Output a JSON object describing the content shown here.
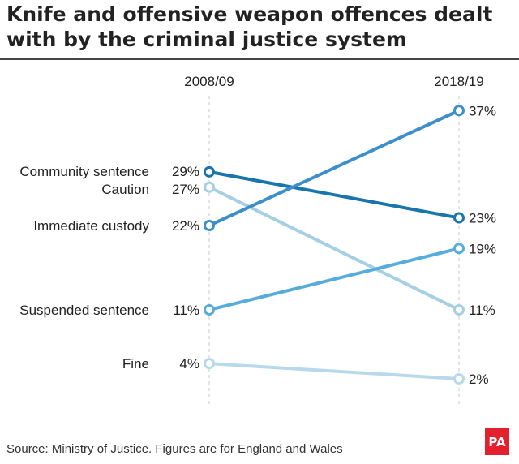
{
  "title": "Knife and offensive weapon offences dealt with by the criminal justice system",
  "source": "Source: Ministry of Justice. Figures are for England and Wales",
  "logo": "PA",
  "chart_data": {
    "type": "line",
    "x": [
      "2008/09",
      "2018/19"
    ],
    "unit": "%",
    "series": [
      {
        "name": "Community sentence",
        "values": [
          29,
          23
        ],
        "labels": [
          "29%",
          "23%"
        ],
        "color": "#1a74ad"
      },
      {
        "name": "Caution",
        "values": [
          27,
          11
        ],
        "labels": [
          "27%",
          "11%"
        ],
        "color": "#a6cfe4"
      },
      {
        "name": "Immediate custody",
        "values": [
          22,
          37
        ],
        "labels": [
          "22%",
          "37%"
        ],
        "color": "#3d8fca"
      },
      {
        "name": "Suspended sentence",
        "values": [
          11,
          19
        ],
        "labels": [
          "11%",
          "19%"
        ],
        "color": "#56addb"
      },
      {
        "name": "Fine",
        "values": [
          4,
          2
        ],
        "labels": [
          "4%",
          "2%"
        ],
        "color": "#b8d9eb"
      }
    ],
    "ylim": [
      0,
      40
    ],
    "grid": false
  }
}
